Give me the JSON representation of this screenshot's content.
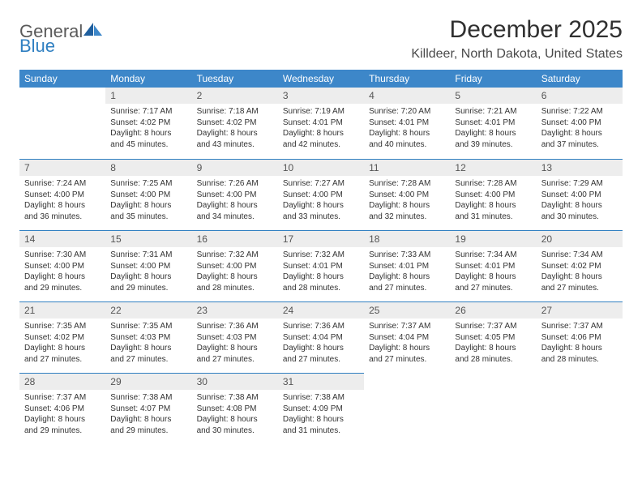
{
  "brand": {
    "general": "General",
    "blue": "Blue"
  },
  "title": "December 2025",
  "location": "Killdeer, North Dakota, United States",
  "colors": {
    "header_bg": "#3d87c9",
    "header_text": "#ffffff",
    "daynum_bg": "#ededed",
    "row_divider": "#2f7fc1",
    "logo_gray": "#5a5a5a",
    "logo_blue": "#2f7fc1",
    "body_text": "#333333",
    "page_bg": "#ffffff"
  },
  "weekday_labels": [
    "Sunday",
    "Monday",
    "Tuesday",
    "Wednesday",
    "Thursday",
    "Friday",
    "Saturday"
  ],
  "first_weekday_index": 1,
  "days": [
    {
      "n": 1,
      "sunrise": "7:17 AM",
      "sunset": "4:02 PM",
      "daylight": "8 hours and 45 minutes."
    },
    {
      "n": 2,
      "sunrise": "7:18 AM",
      "sunset": "4:02 PM",
      "daylight": "8 hours and 43 minutes."
    },
    {
      "n": 3,
      "sunrise": "7:19 AM",
      "sunset": "4:01 PM",
      "daylight": "8 hours and 42 minutes."
    },
    {
      "n": 4,
      "sunrise": "7:20 AM",
      "sunset": "4:01 PM",
      "daylight": "8 hours and 40 minutes."
    },
    {
      "n": 5,
      "sunrise": "7:21 AM",
      "sunset": "4:01 PM",
      "daylight": "8 hours and 39 minutes."
    },
    {
      "n": 6,
      "sunrise": "7:22 AM",
      "sunset": "4:00 PM",
      "daylight": "8 hours and 37 minutes."
    },
    {
      "n": 7,
      "sunrise": "7:24 AM",
      "sunset": "4:00 PM",
      "daylight": "8 hours and 36 minutes."
    },
    {
      "n": 8,
      "sunrise": "7:25 AM",
      "sunset": "4:00 PM",
      "daylight": "8 hours and 35 minutes."
    },
    {
      "n": 9,
      "sunrise": "7:26 AM",
      "sunset": "4:00 PM",
      "daylight": "8 hours and 34 minutes."
    },
    {
      "n": 10,
      "sunrise": "7:27 AM",
      "sunset": "4:00 PM",
      "daylight": "8 hours and 33 minutes."
    },
    {
      "n": 11,
      "sunrise": "7:28 AM",
      "sunset": "4:00 PM",
      "daylight": "8 hours and 32 minutes."
    },
    {
      "n": 12,
      "sunrise": "7:28 AM",
      "sunset": "4:00 PM",
      "daylight": "8 hours and 31 minutes."
    },
    {
      "n": 13,
      "sunrise": "7:29 AM",
      "sunset": "4:00 PM",
      "daylight": "8 hours and 30 minutes."
    },
    {
      "n": 14,
      "sunrise": "7:30 AM",
      "sunset": "4:00 PM",
      "daylight": "8 hours and 29 minutes."
    },
    {
      "n": 15,
      "sunrise": "7:31 AM",
      "sunset": "4:00 PM",
      "daylight": "8 hours and 29 minutes."
    },
    {
      "n": 16,
      "sunrise": "7:32 AM",
      "sunset": "4:00 PM",
      "daylight": "8 hours and 28 minutes."
    },
    {
      "n": 17,
      "sunrise": "7:32 AM",
      "sunset": "4:01 PM",
      "daylight": "8 hours and 28 minutes."
    },
    {
      "n": 18,
      "sunrise": "7:33 AM",
      "sunset": "4:01 PM",
      "daylight": "8 hours and 27 minutes."
    },
    {
      "n": 19,
      "sunrise": "7:34 AM",
      "sunset": "4:01 PM",
      "daylight": "8 hours and 27 minutes."
    },
    {
      "n": 20,
      "sunrise": "7:34 AM",
      "sunset": "4:02 PM",
      "daylight": "8 hours and 27 minutes."
    },
    {
      "n": 21,
      "sunrise": "7:35 AM",
      "sunset": "4:02 PM",
      "daylight": "8 hours and 27 minutes."
    },
    {
      "n": 22,
      "sunrise": "7:35 AM",
      "sunset": "4:03 PM",
      "daylight": "8 hours and 27 minutes."
    },
    {
      "n": 23,
      "sunrise": "7:36 AM",
      "sunset": "4:03 PM",
      "daylight": "8 hours and 27 minutes."
    },
    {
      "n": 24,
      "sunrise": "7:36 AM",
      "sunset": "4:04 PM",
      "daylight": "8 hours and 27 minutes."
    },
    {
      "n": 25,
      "sunrise": "7:37 AM",
      "sunset": "4:04 PM",
      "daylight": "8 hours and 27 minutes."
    },
    {
      "n": 26,
      "sunrise": "7:37 AM",
      "sunset": "4:05 PM",
      "daylight": "8 hours and 28 minutes."
    },
    {
      "n": 27,
      "sunrise": "7:37 AM",
      "sunset": "4:06 PM",
      "daylight": "8 hours and 28 minutes."
    },
    {
      "n": 28,
      "sunrise": "7:37 AM",
      "sunset": "4:06 PM",
      "daylight": "8 hours and 29 minutes."
    },
    {
      "n": 29,
      "sunrise": "7:38 AM",
      "sunset": "4:07 PM",
      "daylight": "8 hours and 29 minutes."
    },
    {
      "n": 30,
      "sunrise": "7:38 AM",
      "sunset": "4:08 PM",
      "daylight": "8 hours and 30 minutes."
    },
    {
      "n": 31,
      "sunrise": "7:38 AM",
      "sunset": "4:09 PM",
      "daylight": "8 hours and 31 minutes."
    }
  ],
  "labels": {
    "sunrise": "Sunrise:",
    "sunset": "Sunset:",
    "daylight": "Daylight:"
  }
}
